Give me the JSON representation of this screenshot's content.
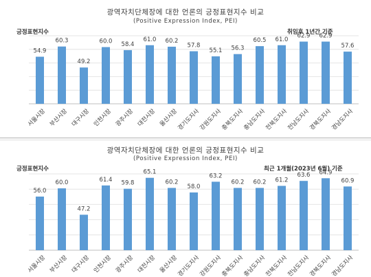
{
  "chart_data": [
    {
      "type": "bar",
      "title": "광역자치단체장에 대한 언론의 긍정표현지수 비교",
      "subtitle": "(Positive Expression Index, PEI)",
      "ylabel": "긍정표현지수",
      "note": "취임후 1년간 기준",
      "categories": [
        "서울시장",
        "부산시장",
        "대구시장",
        "인천시장",
        "광주시장",
        "대전시장",
        "울산시장",
        "경기도지사",
        "강원도지사",
        "충북도지사",
        "충남도지사",
        "전북도지사",
        "전남도지사",
        "경북도지사",
        "경남도지사"
      ],
      "values": [
        54.9,
        60.3,
        49.2,
        60.0,
        58.4,
        61.0,
        60.2,
        57.8,
        55.1,
        56.3,
        60.5,
        61.0,
        62.9,
        62.9,
        57.6
      ],
      "labels": [
        "54.9",
        "60.3",
        "49.2",
        "60.0",
        "58.4",
        "61.0",
        "60.2",
        "57.8",
        "55.1",
        "56.3",
        "60.5",
        "61.0",
        "62.9",
        "62.9",
        "57.6"
      ],
      "ylim": [
        30,
        66
      ],
      "color": "#5b9bd5",
      "grid": true
    },
    {
      "type": "bar",
      "title": "광역자치단체장에 대한 언론의 긍정표현지수 비교",
      "subtitle": "(Positive Expression Index, PEI)",
      "ylabel": "긍정표현지수",
      "note": "최근 1개월(2023년 6월) 기준",
      "categories": [
        "서울시장",
        "부산시장",
        "대구시장",
        "인천시장",
        "광주시장",
        "대전시장",
        "울산시장",
        "경기도지사",
        "강원도지사",
        "충북도지사",
        "충남도지사",
        "전북도지사",
        "전남도지사",
        "경북도지사",
        "경남도지사"
      ],
      "values": [
        56.0,
        60.0,
        47.2,
        61.4,
        59.8,
        65.1,
        60.2,
        58.0,
        63.2,
        60.2,
        60.2,
        61.2,
        63.6,
        64.9,
        60.9
      ],
      "labels": [
        "56.0",
        "60.0",
        "47.2",
        "61.4",
        "59.8",
        "65.1",
        "60.2",
        "58.0",
        "63.2",
        "60.2",
        "60.2",
        "61.2",
        "63.6",
        "64.9",
        "60.9"
      ],
      "ylim": [
        30,
        67
      ],
      "color": "#5b9bd5",
      "grid": true
    }
  ]
}
